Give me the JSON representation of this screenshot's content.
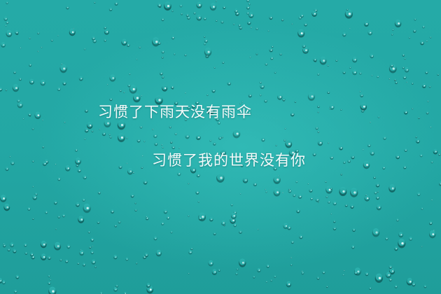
{
  "background": {
    "subject": "raindrops-on-glass",
    "base_color": "#24a9a6",
    "drop_highlight": "#e8fbfa",
    "drop_shadow": "#0b4f4e"
  },
  "captions": {
    "line1": "习惯了下雨天没有雨伞",
    "line2": "习惯了我的世界没有你"
  }
}
